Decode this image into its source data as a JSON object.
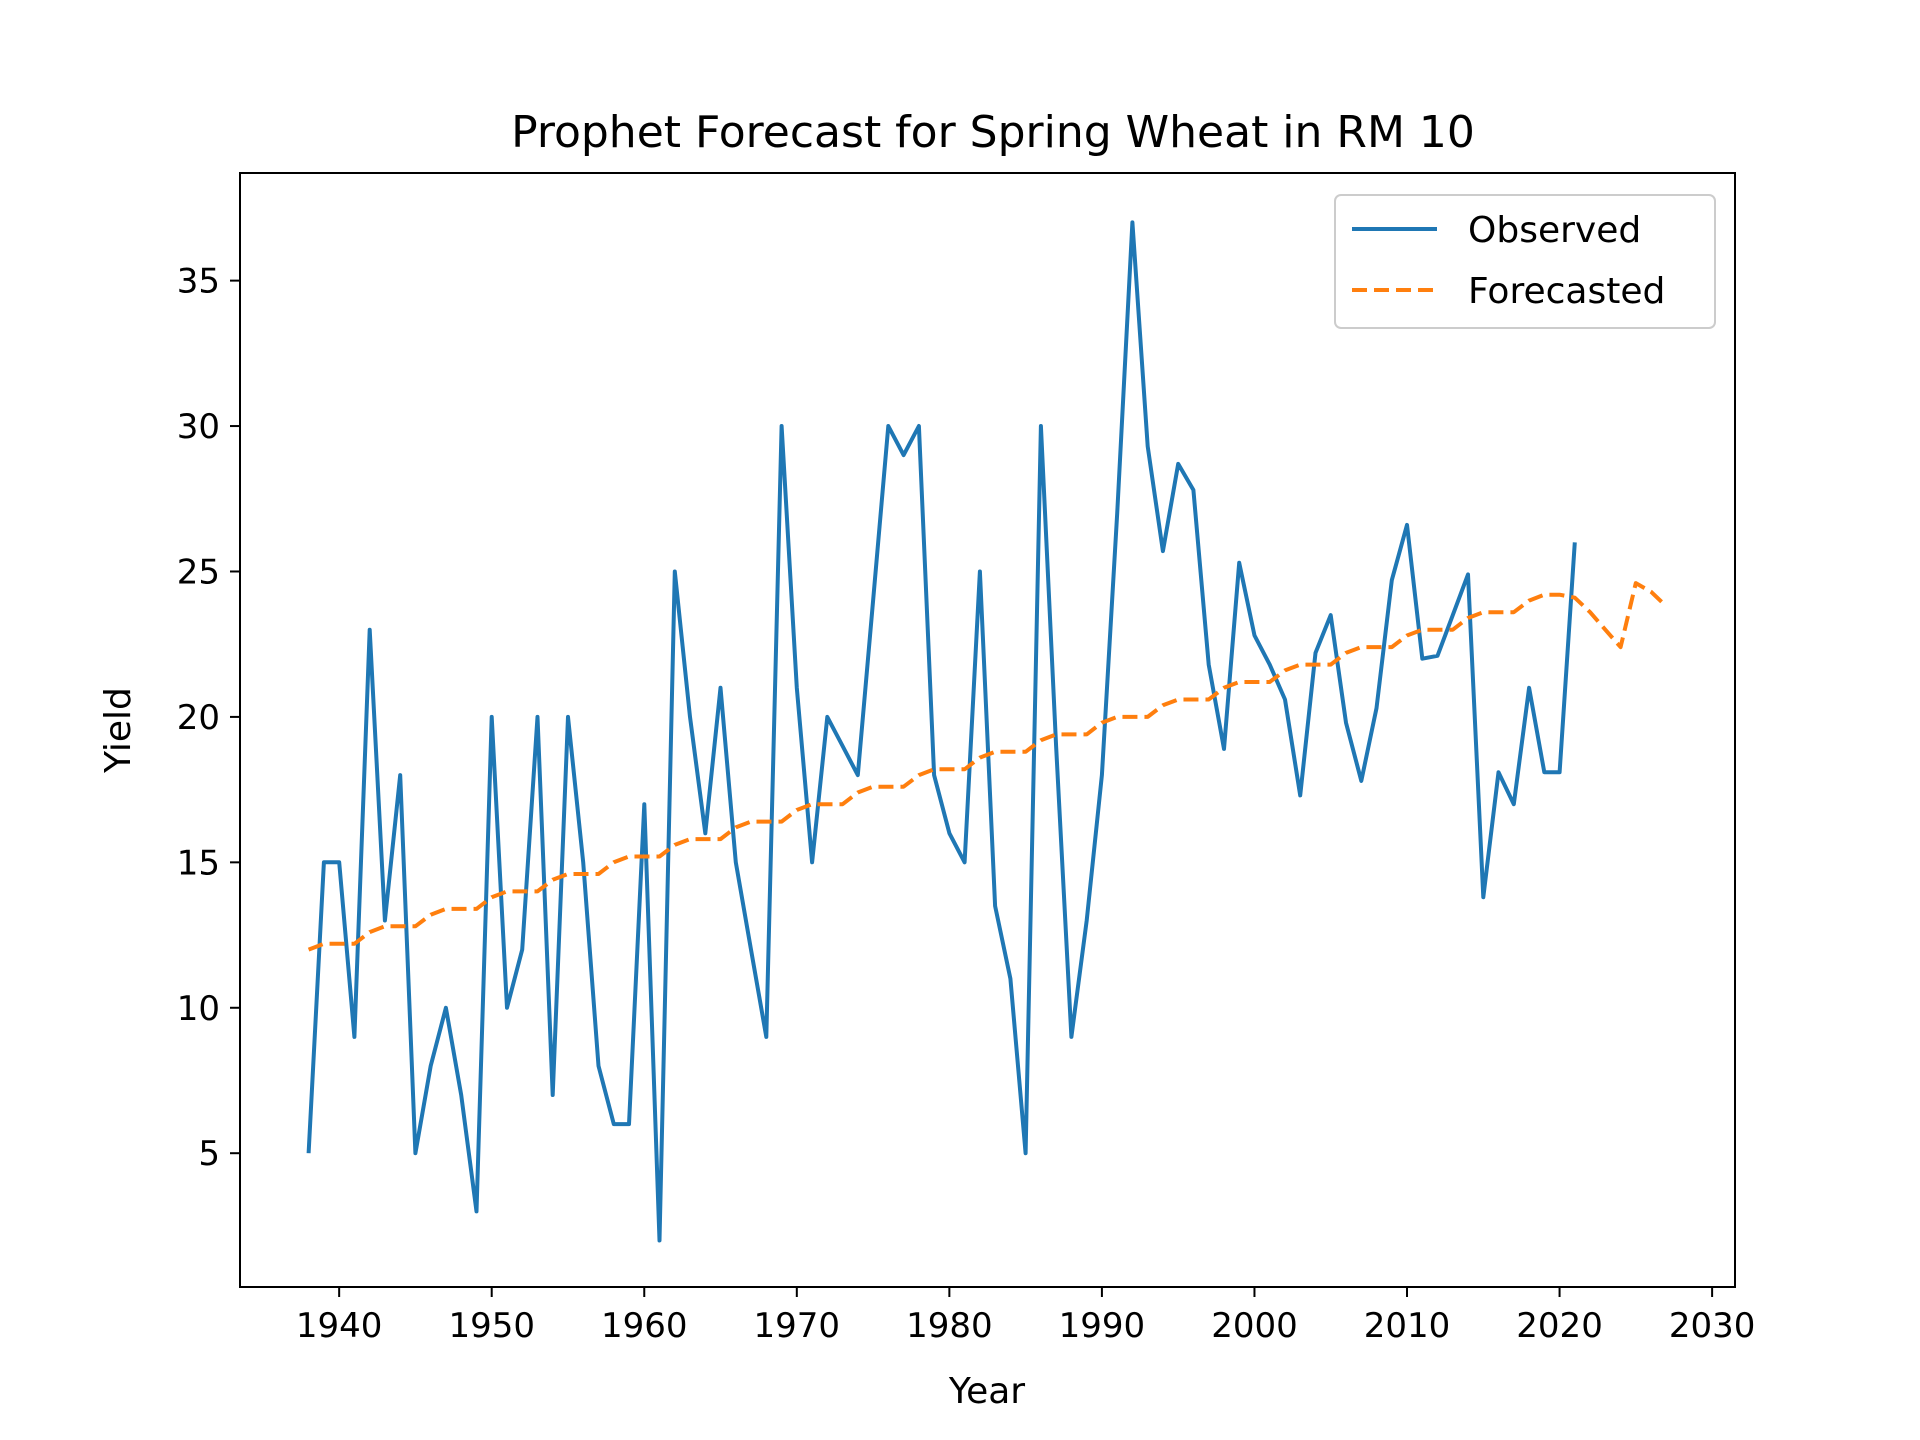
{
  "chart_data": {
    "type": "line",
    "title": "Prophet Forecast for Spring Wheat in RM 10",
    "xlabel": "Year",
    "ylabel": "Yield",
    "xlim": [
      1933.5,
      2031.5
    ],
    "ylim": [
      0.4,
      38.7
    ],
    "xticks": [
      1940,
      1950,
      1960,
      1970,
      1980,
      1990,
      2000,
      2010,
      2020,
      2030
    ],
    "yticks": [
      5,
      10,
      15,
      20,
      25,
      30,
      35
    ],
    "grid": false,
    "legend_position": "top-right",
    "series": [
      {
        "name": "Observed",
        "color": "#1f77b4",
        "style": "solid",
        "x": [
          1938,
          1939,
          1940,
          1941,
          1942,
          1943,
          1944,
          1945,
          1946,
          1947,
          1948,
          1949,
          1950,
          1951,
          1952,
          1953,
          1954,
          1955,
          1956,
          1957,
          1958,
          1959,
          1960,
          1961,
          1962,
          1963,
          1964,
          1965,
          1966,
          1967,
          1968,
          1969,
          1970,
          1971,
          1972,
          1973,
          1974,
          1975,
          1976,
          1977,
          1978,
          1979,
          1980,
          1981,
          1982,
          1983,
          1984,
          1985,
          1986,
          1987,
          1988,
          1989,
          1990,
          1991,
          1992,
          1993,
          1994,
          1995,
          1996,
          1997,
          1998,
          1999,
          2000,
          2001,
          2002,
          2003,
          2004,
          2005,
          2006,
          2007,
          2008,
          2009,
          2010,
          2011,
          2012,
          2013,
          2014,
          2015,
          2016,
          2017,
          2018,
          2019,
          2020,
          2021
        ],
        "y": [
          5,
          15,
          15,
          9,
          23,
          13,
          18,
          5,
          8,
          10,
          7,
          3,
          20,
          10,
          12,
          20,
          7,
          20,
          15,
          8,
          6,
          6,
          17,
          2,
          25,
          20,
          16,
          21,
          15,
          12,
          9,
          30,
          21,
          15,
          20,
          19,
          18,
          24,
          30,
          29,
          30,
          18,
          16,
          15,
          25,
          13.5,
          11,
          5,
          30,
          19,
          9,
          13,
          18,
          27,
          37,
          29.3,
          25.7,
          28.7,
          27.8,
          21.8,
          18.9,
          25.3,
          22.8,
          21.8,
          20.6,
          17.3,
          22.2,
          23.5,
          19.8,
          17.8,
          20.3,
          24.7,
          26.6,
          22,
          22.1,
          23.5,
          24.9,
          13.8,
          18.1,
          17,
          21,
          18.1,
          18.1,
          26
        ]
      },
      {
        "name": "Forecasted",
        "color": "#ff7f0e",
        "style": "dashed",
        "x": [
          1938,
          1939,
          1940,
          1941,
          1942,
          1943,
          1944,
          1945,
          1946,
          1947,
          1948,
          1949,
          1950,
          1951,
          1952,
          1953,
          1954,
          1955,
          1956,
          1957,
          1958,
          1959,
          1960,
          1961,
          1962,
          1963,
          1964,
          1965,
          1966,
          1967,
          1968,
          1969,
          1970,
          1971,
          1972,
          1973,
          1974,
          1975,
          1976,
          1977,
          1978,
          1979,
          1980,
          1981,
          1982,
          1983,
          1984,
          1985,
          1986,
          1987,
          1988,
          1989,
          1990,
          1991,
          1992,
          1993,
          1994,
          1995,
          1996,
          1997,
          1998,
          1999,
          2000,
          2001,
          2002,
          2003,
          2004,
          2005,
          2006,
          2007,
          2008,
          2009,
          2010,
          2011,
          2012,
          2013,
          2014,
          2015,
          2016,
          2017,
          2018,
          2019,
          2020,
          2021,
          2022,
          2023,
          2024,
          2025,
          2026,
          2027
        ],
        "y": [
          12.0,
          12.2,
          12.2,
          12.2,
          12.6,
          12.8,
          12.8,
          12.8,
          13.2,
          13.4,
          13.4,
          13.4,
          13.8,
          14.0,
          14.0,
          14.0,
          14.4,
          14.6,
          14.6,
          14.6,
          15.0,
          15.2,
          15.2,
          15.2,
          15.6,
          15.8,
          15.8,
          15.8,
          16.2,
          16.4,
          16.4,
          16.4,
          16.8,
          17.0,
          17.0,
          17.0,
          17.4,
          17.6,
          17.6,
          17.6,
          18.0,
          18.2,
          18.2,
          18.2,
          18.6,
          18.8,
          18.8,
          18.8,
          19.2,
          19.4,
          19.4,
          19.4,
          19.8,
          20.0,
          20.0,
          20.0,
          20.4,
          20.6,
          20.6,
          20.6,
          21.0,
          21.2,
          21.2,
          21.2,
          21.6,
          21.8,
          21.8,
          21.8,
          22.2,
          22.4,
          22.4,
          22.4,
          22.8,
          23.0,
          23.0,
          23.0,
          23.4,
          23.6,
          23.6,
          23.6,
          24.0,
          24.2,
          24.2,
          24.1,
          23.6,
          23.0,
          22.4,
          24.6,
          24.3,
          23.8
        ]
      }
    ]
  }
}
